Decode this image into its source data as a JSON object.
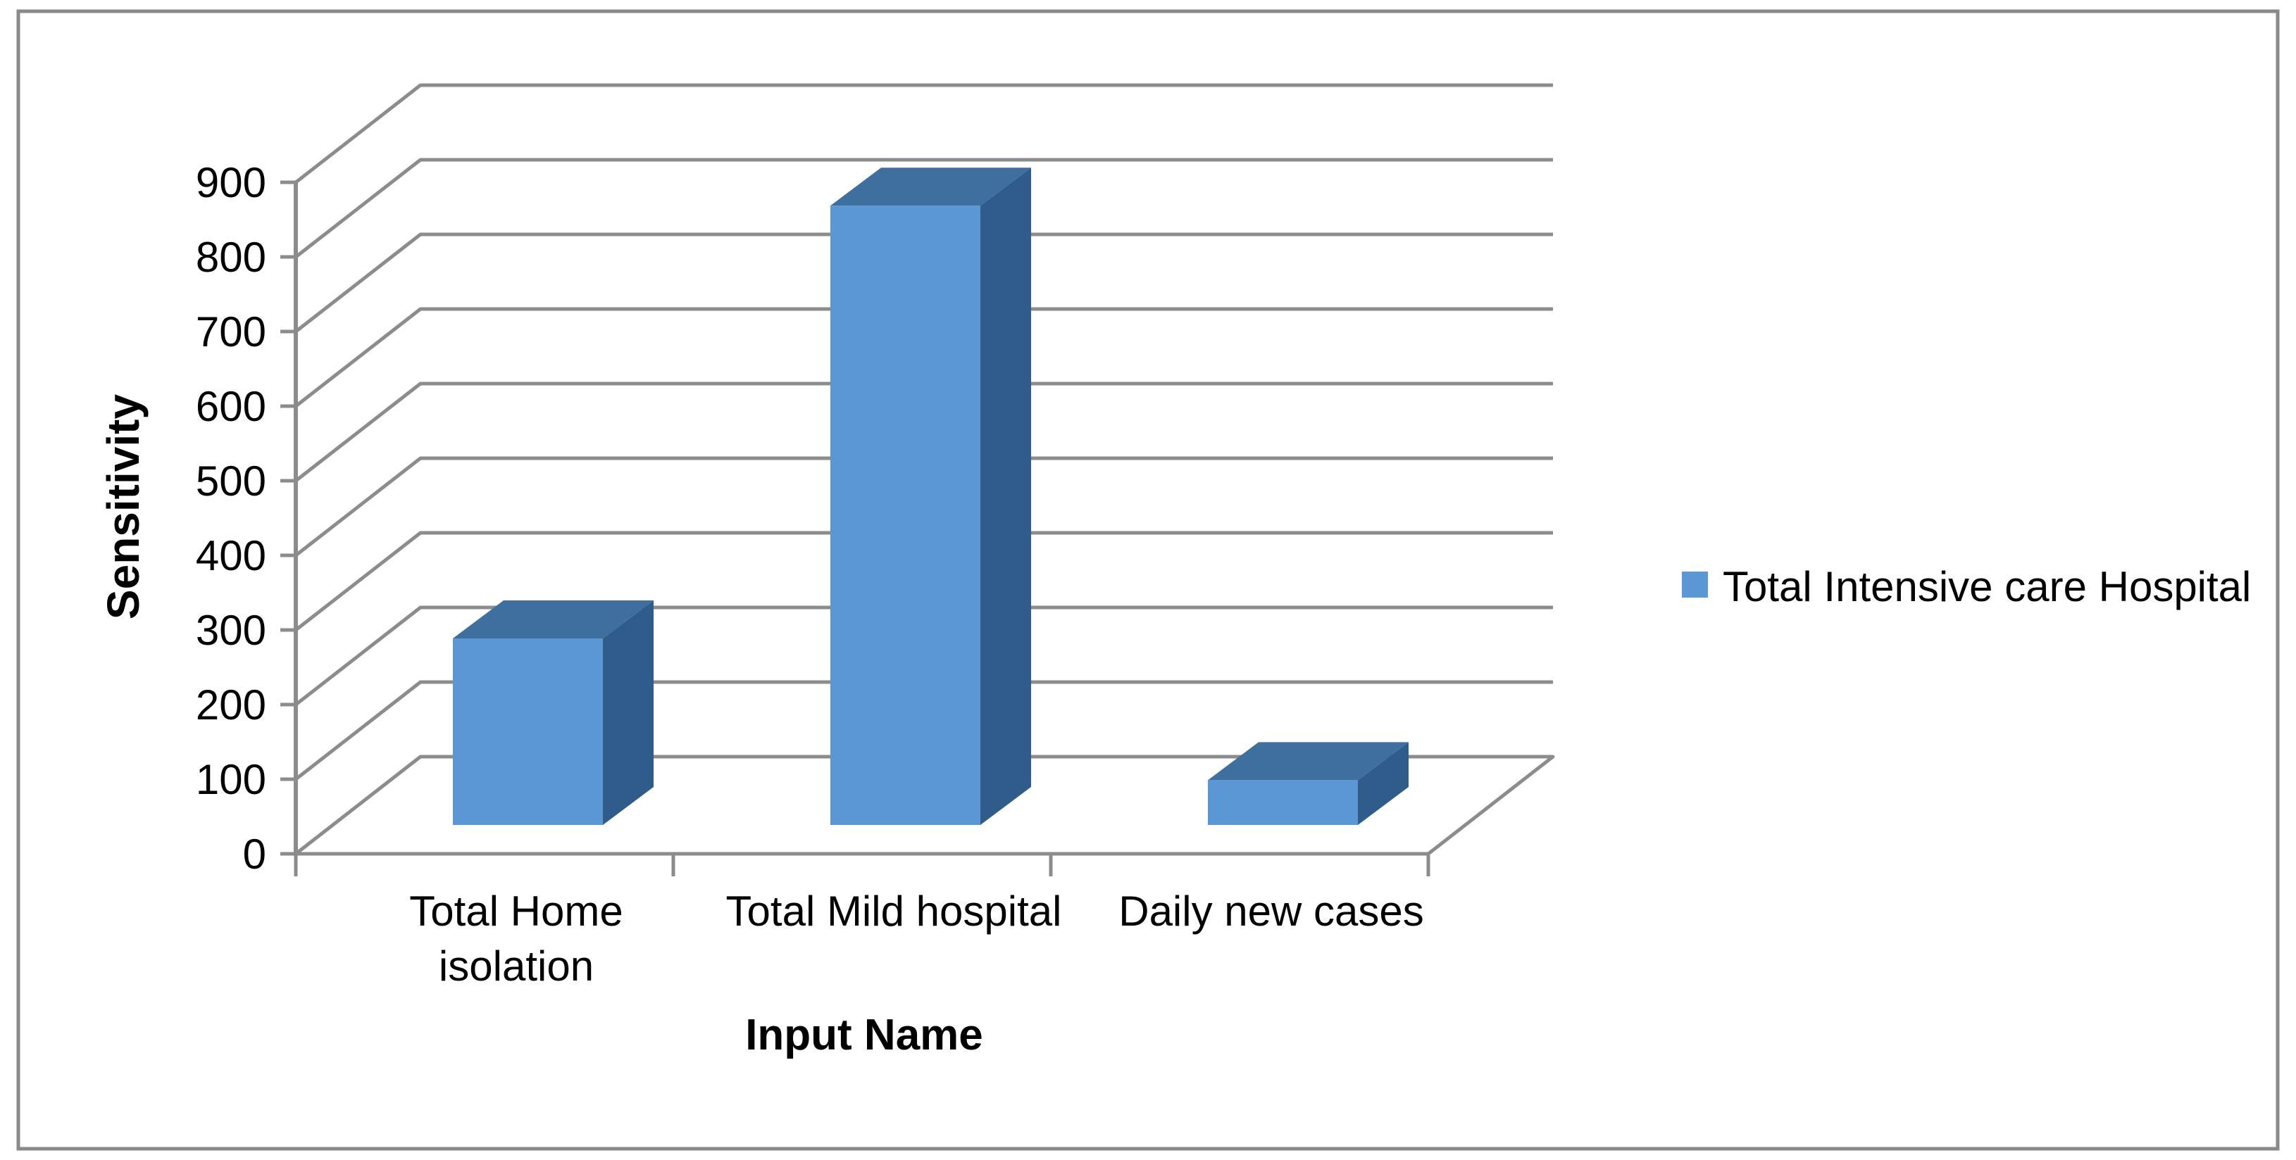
{
  "chart_data": {
    "type": "bar",
    "view": "3d",
    "title": "",
    "categories": [
      "Total Home isolation",
      "Total Mild hospital",
      "Daily new cases"
    ],
    "category_label_lines": [
      [
        "Total Home",
        "isolation"
      ],
      [
        "Total Mild hospital"
      ],
      [
        "Daily new cases"
      ]
    ],
    "series": [
      {
        "name": "Total Intensive care Hospital",
        "values": [
          250,
          830,
          60
        ]
      }
    ],
    "xlabel": "Input Name",
    "ylabel": "Sensitivity",
    "ylim": [
      0,
      900
    ],
    "ytick_step": 100,
    "yticks": [
      0,
      100,
      200,
      300,
      400,
      500,
      600,
      700,
      800,
      900
    ],
    "grid": true,
    "legend_position": "right",
    "colors": {
      "bar_front": "#5B97D5",
      "bar_top": "#3F6F9F",
      "bar_side": "#2F5C8B",
      "gridline": "#8C8C8C",
      "axis_line": "#8C8C8C",
      "text": "#000000",
      "figure_border": "#8A8A8A",
      "background": "#FFFFFF"
    }
  },
  "legend": {
    "label": "Total Intensive care Hospital"
  }
}
